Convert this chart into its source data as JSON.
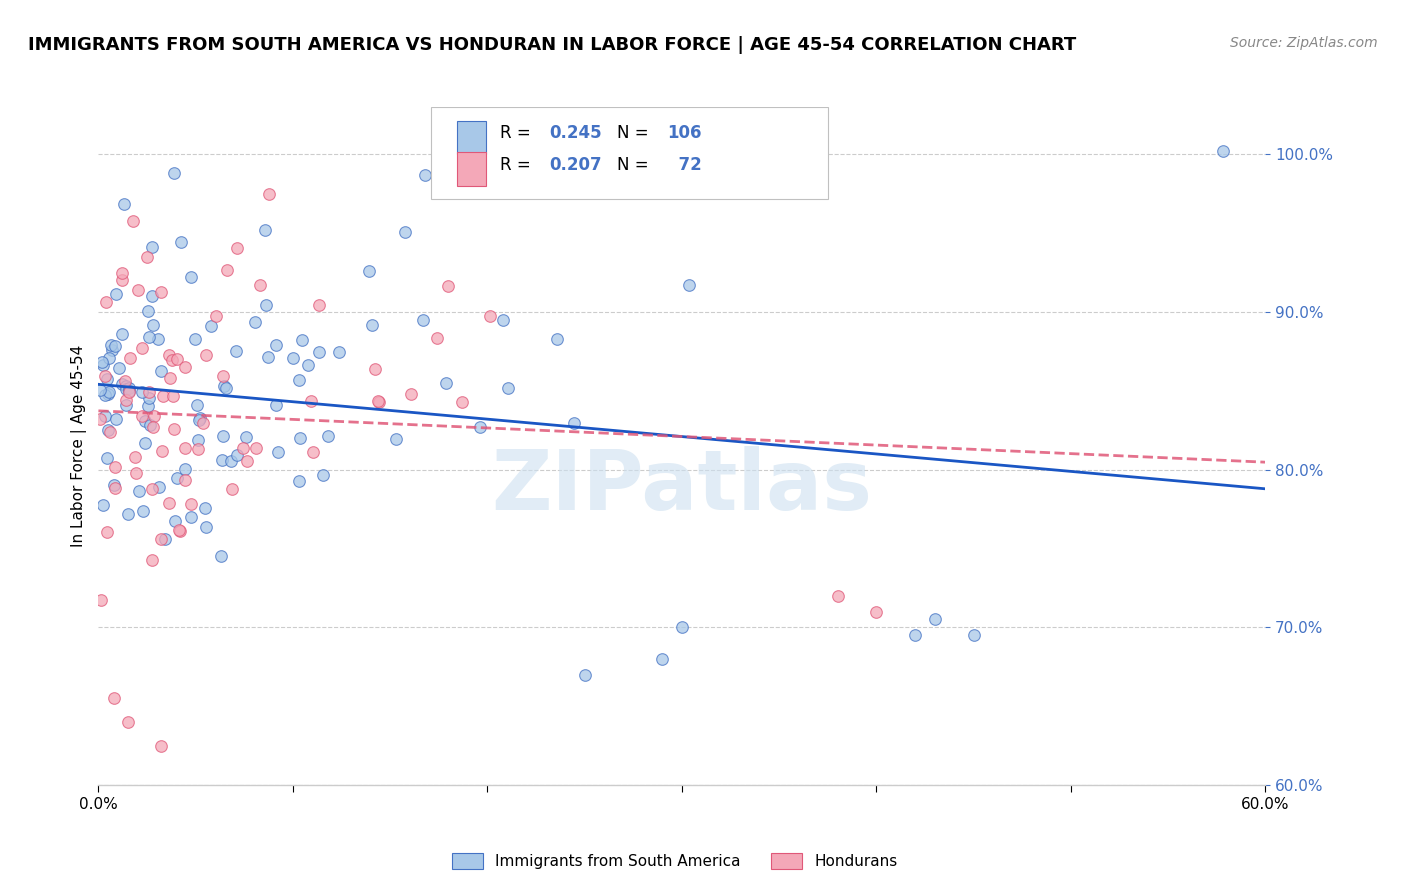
{
  "title": "IMMIGRANTS FROM SOUTH AMERICA VS HONDURAN IN LABOR FORCE | AGE 45-54 CORRELATION CHART",
  "source": "Source: ZipAtlas.com",
  "ylabel": "In Labor Force | Age 45-54",
  "xlim": [
    0.0,
    0.6
  ],
  "ylim": [
    0.6,
    1.03
  ],
  "yticks": [
    0.6,
    0.7,
    0.8,
    0.9,
    1.0
  ],
  "xtick_positions": [
    0.0,
    0.1,
    0.2,
    0.3,
    0.4,
    0.5,
    0.6
  ],
  "xtick_labels": [
    "0.0%",
    "",
    "",
    "",
    "",
    "",
    "60.0%"
  ],
  "blue_R": 0.245,
  "blue_N": 106,
  "pink_R": 0.207,
  "pink_N": 72,
  "blue_fill": "#a8c8e8",
  "pink_fill": "#f4a8b8",
  "blue_edge": "#4472c4",
  "pink_edge": "#e05878",
  "blue_line": "#1a56c4",
  "pink_line": "#e05878",
  "stat_color": "#4472c4",
  "legend_label_blue": "Immigrants from South America",
  "legend_label_pink": "Hondurans",
  "watermark": "ZIPatlas",
  "grid_color": "#cccccc",
  "title_fontsize": 13,
  "source_fontsize": 10,
  "tick_fontsize": 11,
  "scatter_size": 70,
  "scatter_alpha": 0.75,
  "line_width": 2.0
}
